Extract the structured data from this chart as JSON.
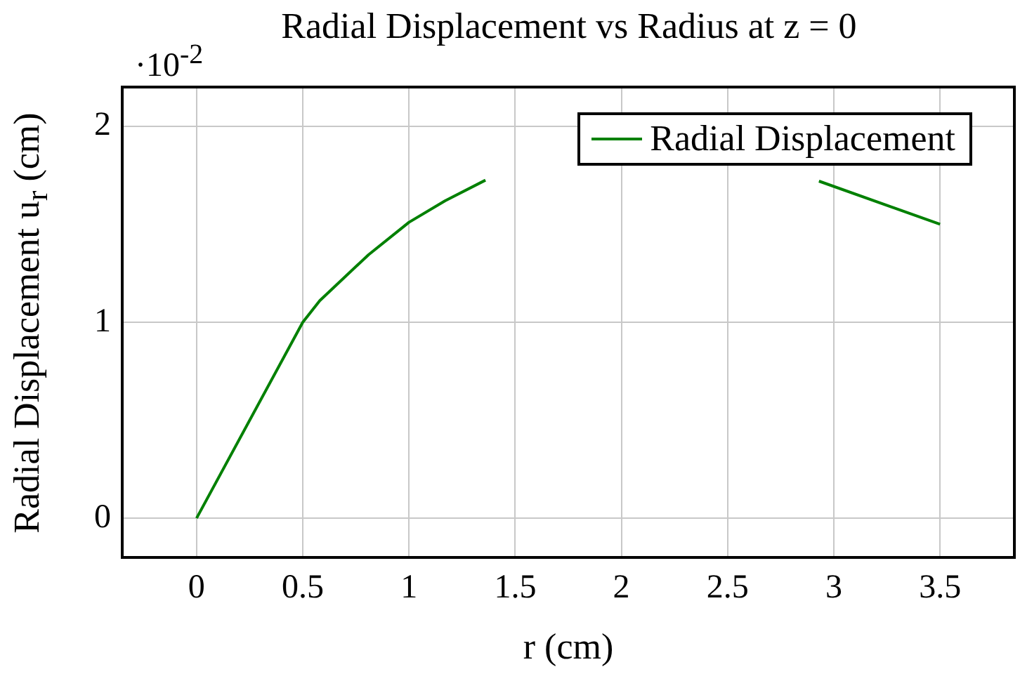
{
  "chart_data": {
    "type": "line",
    "title": "Radial Displacement vs Radius at z = 0",
    "xlabel": "r (cm)",
    "ylabel": "Radial Displacement u$_{r}$ (cm)",
    "annotations": [
      "·10$^{-2}$"
    ],
    "x": [
      0,
      0.5,
      0.58,
      0.81,
      1.0,
      1.17,
      1.36,
      2.0,
      2.93,
      3.5
    ],
    "series": [
      {
        "name": "Radial Displacement",
        "color": "#008000",
        "values": [
          0,
          1.0,
          1.11,
          1.345,
          1.51,
          1.62,
          1.725,
          null,
          1.72,
          1.5
        ]
      }
    ],
    "xlim": [
      -0.35,
      3.85
    ],
    "xticks": [
      0,
      0.5,
      1,
      1.5,
      2,
      2.5,
      3,
      3.5
    ],
    "ylim": [
      -0.2,
      2.2
    ],
    "yticks": [
      0,
      1,
      2
    ],
    "grid": true,
    "legend": "top right",
    "marker": "none",
    "line_style": "solid"
  }
}
